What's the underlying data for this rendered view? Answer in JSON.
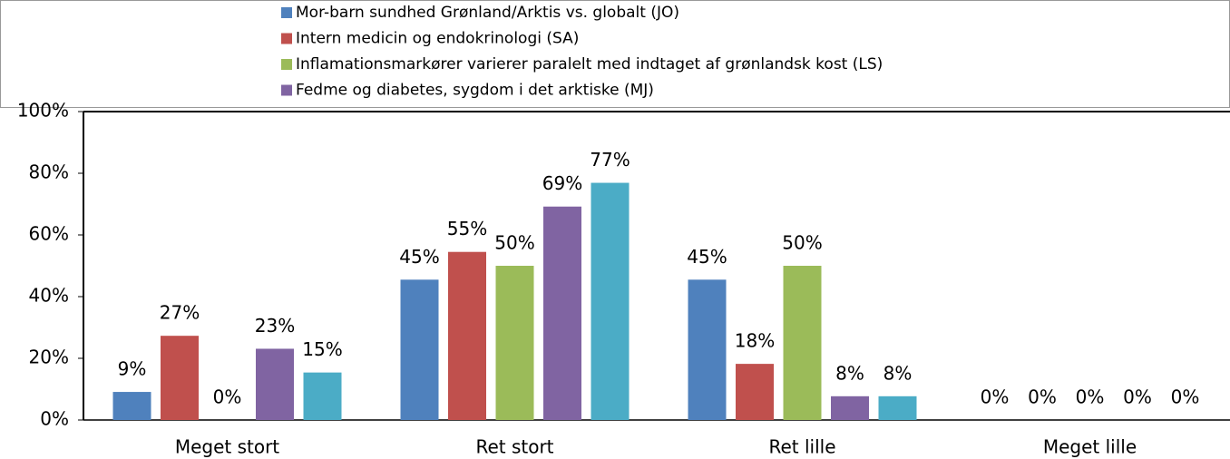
{
  "chart_data": {
    "type": "bar",
    "categories": [
      "Meget stort",
      "Ret stort",
      "Ret lille",
      "Meget lille"
    ],
    "series": [
      {
        "name": "Mor-barn sundhed Grønland/Arktis  vs. globalt (JO)",
        "color": "#4f81bd",
        "values": [
          9.1,
          45.5,
          45.5,
          0
        ],
        "value_labels": [
          "9%",
          "45%",
          "45%",
          "0%"
        ]
      },
      {
        "name": "Intern medicin og endokrinologi (SA)",
        "color": "#c0504d",
        "values": [
          27.3,
          54.5,
          18.2,
          0
        ],
        "value_labels": [
          "27%",
          "55%",
          "18%",
          "0%"
        ]
      },
      {
        "name": "Inflamationsmarkører varierer paralelt med indtaget af grønlandsk kost (LS)",
        "color": "#9bbb59",
        "values": [
          0,
          50,
          50,
          0
        ],
        "value_labels": [
          "0%",
          "50%",
          "50%",
          "0%"
        ]
      },
      {
        "name": "Fedme og diabetes, sygdom i det arktiske (MJ)",
        "color": "#8064a2",
        "values": [
          23.1,
          69.2,
          7.7,
          0
        ],
        "value_labels": [
          "23%",
          "69%",
          "8%",
          "0%"
        ]
      },
      {
        "color": "#4bacc6",
        "values": [
          15.4,
          76.9,
          7.7,
          0
        ],
        "value_labels": [
          "15%",
          "77%",
          "8%",
          "0%"
        ]
      }
    ],
    "ylim": [
      0,
      100
    ],
    "yticks": [
      {
        "value": 0,
        "label": "0%"
      },
      {
        "value": 20,
        "label": "20%"
      },
      {
        "value": 40,
        "label": "40%"
      },
      {
        "value": 60,
        "label": "60%"
      },
      {
        "value": 80,
        "label": "80%"
      },
      {
        "value": 100,
        "label": "100%"
      }
    ],
    "legend": "top"
  }
}
